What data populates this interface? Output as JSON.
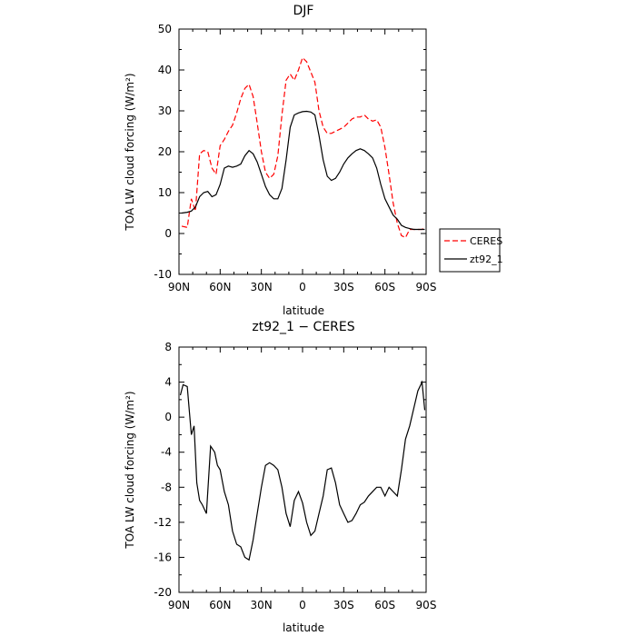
{
  "chart_data": [
    {
      "type": "line",
      "title": "DJF",
      "xlabel": "latitude",
      "ylabel": "TOA LW cloud forcing (W/m²)",
      "xlim": [
        90,
        -90
      ],
      "ylim": [
        -10,
        50
      ],
      "xticks": [
        {
          "value": 90,
          "label": "90N"
        },
        {
          "value": 60,
          "label": "60N"
        },
        {
          "value": 30,
          "label": "30N"
        },
        {
          "value": 0,
          "label": "0"
        },
        {
          "value": -30,
          "label": "30S"
        },
        {
          "value": -60,
          "label": "60S"
        },
        {
          "value": -90,
          "label": "90S"
        }
      ],
      "yticks": [
        -10,
        0,
        10,
        20,
        30,
        40,
        50
      ],
      "legend_position": "outside-right",
      "x": [
        88,
        84,
        81,
        78,
        75,
        72,
        69,
        66,
        63,
        60,
        57,
        54,
        51,
        48,
        45,
        42,
        39,
        36,
        33,
        30,
        27,
        24,
        21,
        18,
        15,
        12,
        9,
        6,
        3,
        0,
        -3,
        -6,
        -9,
        -12,
        -15,
        -18,
        -21,
        -24,
        -27,
        -30,
        -33,
        -36,
        -39,
        -42,
        -45,
        -48,
        -51,
        -54,
        -57,
        -60,
        -63,
        -66,
        -69,
        -72,
        -75,
        -78,
        -81,
        -84,
        -87,
        -89
      ],
      "series": [
        {
          "name": "CERES",
          "color": "#ff0000",
          "dash": "dashed",
          "values": [
            1.8,
            1.5,
            8.5,
            5.5,
            19.5,
            20.3,
            20.0,
            16.0,
            14.5,
            21.5,
            23.0,
            25.0,
            26.5,
            29.5,
            33.0,
            35.5,
            36.5,
            33.5,
            27.0,
            20.0,
            15.0,
            13.5,
            14.5,
            19.0,
            29.0,
            37.5,
            39.0,
            37.5,
            40.0,
            43.0,
            42.0,
            39.5,
            37.0,
            30.0,
            26.0,
            24.5,
            24.5,
            25.0,
            25.5,
            26.0,
            27.0,
            28.0,
            28.5,
            28.5,
            29.0,
            28.0,
            27.5,
            27.8,
            26.0,
            21.0,
            14.5,
            7.5,
            2.5,
            -0.5,
            -1.0,
            1.0,
            1.0,
            1.0,
            1.0,
            1.5
          ]
        },
        {
          "name": "zt92_1",
          "color": "#000000",
          "dash": "solid",
          "values": [
            5.0,
            5.2,
            5.5,
            6.5,
            9.0,
            10.0,
            10.3,
            9.0,
            9.5,
            12.0,
            16.0,
            16.5,
            16.2,
            16.5,
            17.0,
            19.0,
            20.3,
            19.5,
            17.5,
            14.5,
            11.5,
            9.5,
            8.5,
            8.5,
            11.0,
            18.0,
            26.0,
            29.0,
            29.5,
            29.8,
            29.9,
            29.7,
            29.0,
            24.0,
            18.0,
            14.0,
            13.0,
            13.5,
            15.0,
            17.0,
            18.5,
            19.5,
            20.3,
            20.7,
            20.3,
            19.5,
            18.5,
            16.0,
            12.0,
            8.5,
            6.5,
            4.5,
            3.5,
            2.0,
            1.5,
            1.2,
            1.0,
            1.0,
            1.0,
            1.0
          ]
        }
      ]
    },
    {
      "type": "line",
      "title": "zt92_1 − CERES",
      "xlabel": "latitude",
      "ylabel": "TOA LW cloud forcing (W/m²)",
      "xlim": [
        90,
        -90
      ],
      "ylim": [
        -20,
        8
      ],
      "xticks": [
        {
          "value": 90,
          "label": "90N"
        },
        {
          "value": 60,
          "label": "60N"
        },
        {
          "value": 30,
          "label": "30N"
        },
        {
          "value": 0,
          "label": "0"
        },
        {
          "value": -30,
          "label": "30S"
        },
        {
          "value": -60,
          "label": "60S"
        },
        {
          "value": -90,
          "label": "90S"
        }
      ],
      "yticks": [
        -20,
        -16,
        -12,
        -8,
        -4,
        0,
        4,
        8
      ],
      "x": [
        89,
        87,
        84,
        81,
        79,
        77,
        75,
        73,
        70,
        67,
        64,
        62,
        60,
        57,
        54,
        51,
        48,
        45,
        42,
        39,
        36,
        33,
        30,
        27,
        24,
        21,
        18,
        15,
        12,
        9,
        6,
        3,
        0,
        -3,
        -6,
        -9,
        -12,
        -15,
        -18,
        -21,
        -24,
        -27,
        -30,
        -33,
        -36,
        -39,
        -42,
        -45,
        -48,
        -51,
        -54,
        -57,
        -60,
        -63,
        -66,
        -69,
        -72,
        -75,
        -78,
        -81,
        -84,
        -87,
        -89
      ],
      "series": [
        {
          "name": "zt92_1 − CERES",
          "color": "#000000",
          "dash": "solid",
          "values": [
            2.5,
            3.7,
            3.5,
            -2.0,
            -1.0,
            -7.5,
            -9.5,
            -10.0,
            -11.0,
            -3.3,
            -4.0,
            -5.5,
            -6.0,
            -8.5,
            -10.0,
            -13.0,
            -14.5,
            -14.8,
            -16.0,
            -16.3,
            -14.0,
            -11.0,
            -8.0,
            -5.5,
            -5.2,
            -5.5,
            -6.0,
            -8.0,
            -11.0,
            -12.5,
            -9.5,
            -8.5,
            -9.8,
            -12.0,
            -13.5,
            -13.0,
            -11.0,
            -9.0,
            -6.0,
            -5.8,
            -7.5,
            -10.0,
            -11.0,
            -12.0,
            -11.8,
            -11.0,
            -10.0,
            -9.7,
            -9.0,
            -8.5,
            -8.0,
            -8.0,
            -9.0,
            -8.0,
            -8.5,
            -9.0,
            -6.0,
            -2.5,
            -1.0,
            1.0,
            3.0,
            4.0,
            0.8
          ]
        }
      ]
    }
  ]
}
